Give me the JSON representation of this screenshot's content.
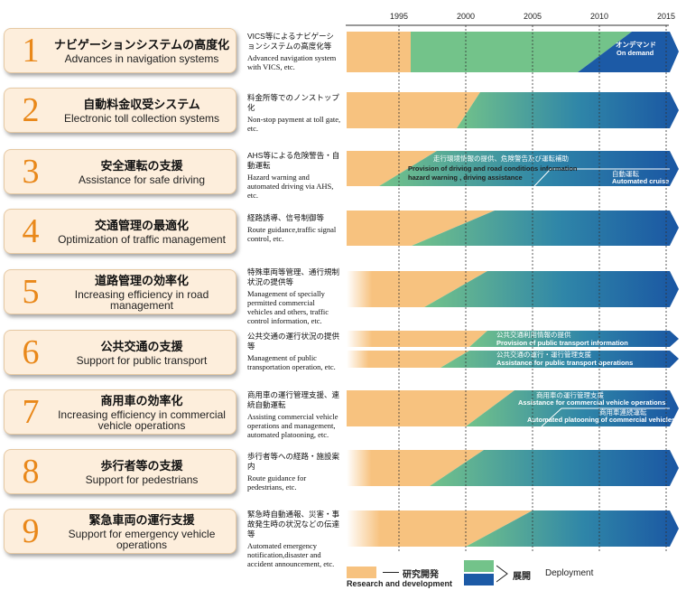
{
  "years": [
    "1995",
    "2000",
    "2005",
    "2010",
    "2015"
  ],
  "colors": {
    "research": "#f7c27f",
    "deploy_green": "#73c38a",
    "deploy_blue": "#1c5aa6"
  },
  "rows": [
    {
      "number": "1",
      "title_ja": "ナビゲーションシステムの高度化",
      "title_en": "Advances in navigation systems",
      "desc_ja": "VICS等によるナビゲーションシステムの高度化等",
      "desc_en": "Advanced navigation system with VICS, etc.",
      "bar_labels": [
        {
          "ja": "オンデマンド",
          "en": "On demand"
        }
      ]
    },
    {
      "number": "2",
      "title_ja": "自動料金収受システム",
      "title_en": "Electronic toll collection systems",
      "desc_ja": "料金所等でのノンストップ化",
      "desc_en": "Non-stop payment at toll gate, etc.",
      "bar_labels": []
    },
    {
      "number": "3",
      "title_ja": "安全運転の支援",
      "title_en": "Assistance for safe driving",
      "desc_ja": "AHS等による危険警告・自動運転",
      "desc_en": "Hazard warning and automated driving via AHS, etc.",
      "bar_labels": [
        {
          "ja": "走行環境情報の提供、危険警告及び運転補助",
          "en": "Provision of driving and road conditions information hazard warning , driving assistance"
        },
        {
          "ja": "自動運転",
          "en": "Automated cruise"
        }
      ]
    },
    {
      "number": "4",
      "title_ja": "交通管理の最適化",
      "title_en": "Optimization of traffic management",
      "desc_ja": "経路誘導、信号制御等",
      "desc_en": "Route guidance,traffic signal control, etc.",
      "bar_labels": []
    },
    {
      "number": "5",
      "title_ja": "道路管理の効率化",
      "title_en": "Increasing efficiency in road management",
      "desc_ja": "特殊車両等管理、通行規制状況の提供等",
      "desc_en": "Management of specially permitted commercial vehicles and others, traffic control information, etc.",
      "bar_labels": []
    },
    {
      "number": "6",
      "title_ja": "公共交通の支援",
      "title_en": "Support for public transport",
      "desc_ja": "公共交通の運行状況の提供等",
      "desc_en": "Management of public transportation operation, etc.",
      "bar_labels": [
        {
          "ja": "公共交通利用情報の提供",
          "en": "Provision of public transport information"
        },
        {
          "ja": "公共交通の運行・運行管理支援",
          "en": "Assistance for public transport operations"
        }
      ]
    },
    {
      "number": "7",
      "title_ja": "商用車の効率化",
      "title_en": "Increasing efficiency in commercial vehicle operations",
      "desc_ja": "商用車の運行管理支援、連続自動運転",
      "desc_en": "Assisting commercial vehicle operations and management, automated platooning, etc.",
      "bar_labels": [
        {
          "ja": "商用車の運行管理支援",
          "en": "Assistance for commercial vehicle operations"
        },
        {
          "ja": "商用車連続運転",
          "en": "Automated platooning of commercial vehicles"
        }
      ]
    },
    {
      "number": "8",
      "title_ja": "歩行者等の支援",
      "title_en": "Support for pedestrians",
      "desc_ja": "歩行者等への経路・施設案内",
      "desc_en": "Route guidance for pedestrians, etc.",
      "bar_labels": []
    },
    {
      "number": "9",
      "title_ja": "緊急車両の運行支援",
      "title_en": "Support for emergency vehicle operations",
      "desc_ja": "緊急時自動通報、災害・事故発生時の状況などの伝達等",
      "desc_en": "Automated emergency notification,disaster and accident announcement, etc.",
      "bar_labels": []
    }
  ],
  "legend": {
    "research_ja": "研究開発",
    "research_en": "Research and development",
    "deploy_ja": "展開",
    "deploy_en": "Deployment"
  }
}
